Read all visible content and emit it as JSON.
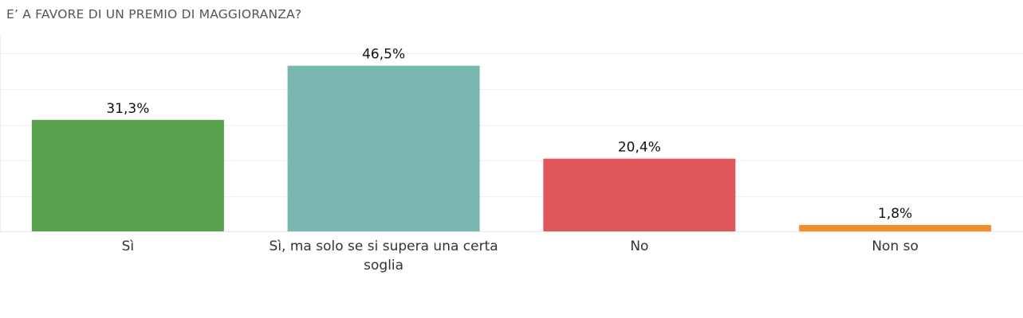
{
  "chart_data": {
    "type": "bar",
    "title": "E’ A FAVORE DI UN PREMIO DI MAGGIORANZA?",
    "xlabel": "",
    "ylabel": "",
    "ylim": [
      0,
      50
    ],
    "grid": true,
    "legend": "none",
    "categories": [
      "Sì",
      "Sì, ma solo se si supera una certa soglia",
      "No",
      "Non so"
    ],
    "values": [
      31.3,
      46.5,
      20.4,
      1.8
    ],
    "value_labels": [
      "31,3%",
      "46,5%",
      "20,4%",
      "1,8%"
    ],
    "colors": [
      "#59a14f",
      "#79b6b0",
      "#e05759",
      "#f28e2b"
    ]
  }
}
